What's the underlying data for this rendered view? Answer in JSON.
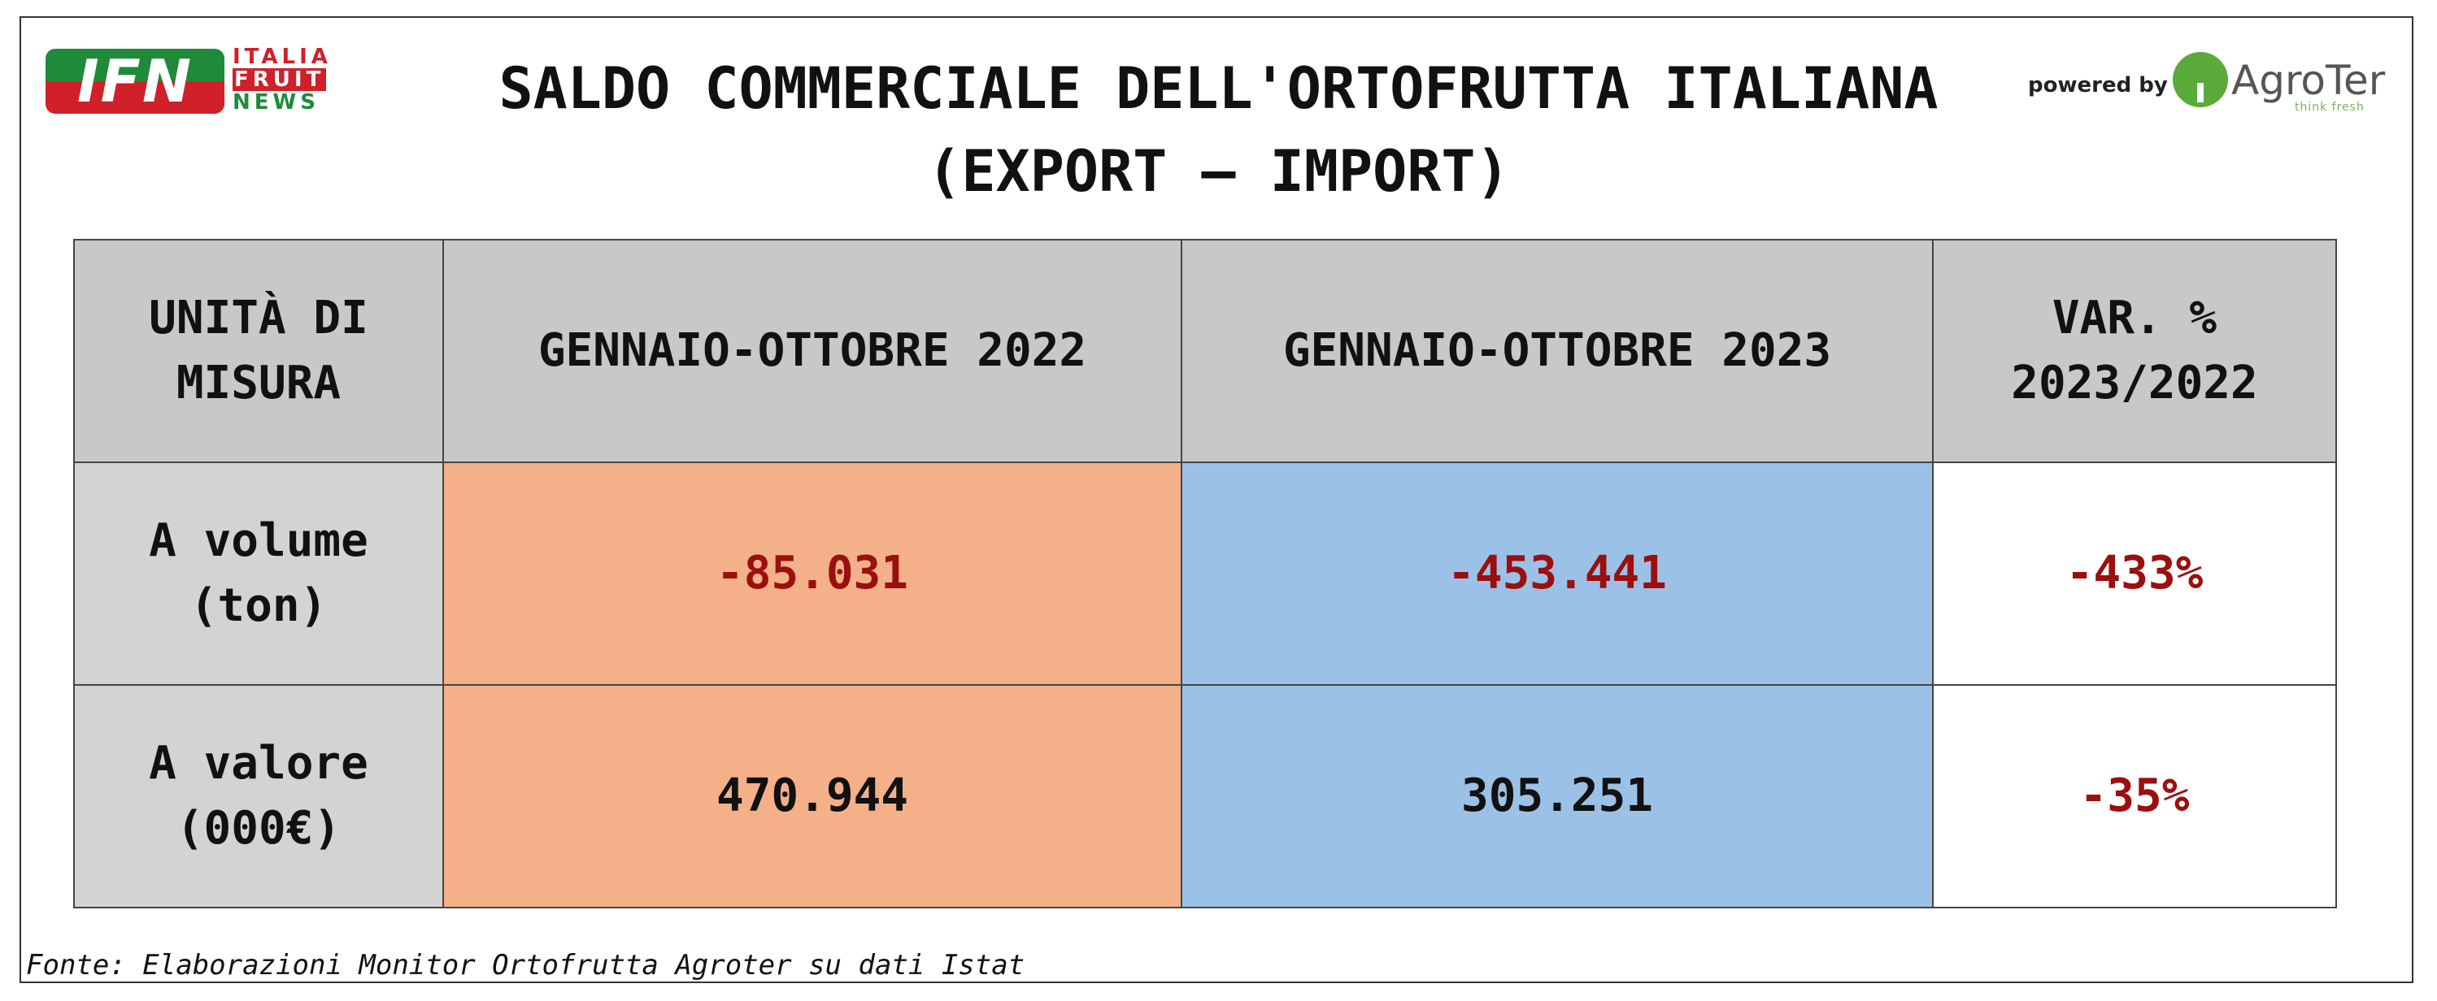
{
  "branding": {
    "left_logo_text": "IFN",
    "left_logo_words": [
      "ITALIA",
      "FRUIT",
      "NEWS"
    ],
    "powered_by": "powered by",
    "right_logo_name": "AgroTer",
    "right_logo_tagline": "think fresh",
    "colors": {
      "ifn_green": "#1f8a3a",
      "ifn_red": "#d0202a",
      "agroter_green": "#5aaa3a"
    }
  },
  "title": {
    "line1": "SALDO COMMERCIALE DELL'ORTOFRUTTA ITALIANA",
    "line2": "(EXPORT – IMPORT)"
  },
  "table": {
    "headers": {
      "unit": [
        "UNITÀ DI",
        "MISURA"
      ],
      "col2022": "GENNAIO-OTTOBRE 2022",
      "col2023": "GENNAIO-OTTOBRE 2023",
      "var": [
        "VAR. %",
        "2023/2022"
      ]
    },
    "rows": [
      {
        "label": [
          "A volume",
          "(ton)"
        ],
        "v2022": "-85.031",
        "v2023": "-453.441",
        "var": "-433%"
      },
      {
        "label": [
          "A valore",
          "(000€)"
        ],
        "v2022": "470.944",
        "v2023": "305.251",
        "var": "-35%"
      }
    ],
    "colors": {
      "header_bg": "#c8c8c8",
      "col2022_bg": "#f4b088",
      "col2023_bg": "#9bc2e6",
      "negative_text": "#9b0f0f"
    }
  },
  "source": "Fonte: Elaborazioni Monitor Ortofrutta Agroter su dati Istat"
}
